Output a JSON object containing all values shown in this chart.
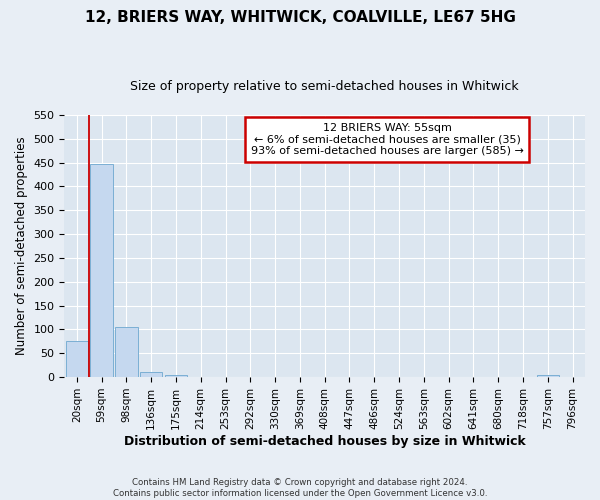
{
  "title": "12, BRIERS WAY, WHITWICK, COALVILLE, LE67 5HG",
  "subtitle": "Size of property relative to semi-detached houses in Whitwick",
  "xlabel": "Distribution of semi-detached houses by size in Whitwick",
  "ylabel": "Number of semi-detached properties",
  "annotation_title": "12 BRIERS WAY: 55sqm",
  "annotation_line1": "← 6% of semi-detached houses are smaller (35)",
  "annotation_line2": "93% of semi-detached houses are larger (585) →",
  "bar_labels": [
    "20sqm",
    "59sqm",
    "98sqm",
    "136sqm",
    "175sqm",
    "214sqm",
    "253sqm",
    "292sqm",
    "330sqm",
    "369sqm",
    "408sqm",
    "447sqm",
    "486sqm",
    "524sqm",
    "563sqm",
    "602sqm",
    "641sqm",
    "680sqm",
    "718sqm",
    "757sqm",
    "796sqm"
  ],
  "bar_values": [
    75,
    447,
    105,
    10,
    5,
    0,
    0,
    0,
    0,
    0,
    0,
    0,
    0,
    0,
    0,
    0,
    0,
    0,
    0,
    5,
    0
  ],
  "bar_color": "#c5d8ef",
  "bar_edge_color": "#7bafd4",
  "vline_color": "#cc0000",
  "vline_position": 0.5,
  "ylim": [
    0,
    550
  ],
  "yticks": [
    0,
    50,
    100,
    150,
    200,
    250,
    300,
    350,
    400,
    450,
    500,
    550
  ],
  "annotation_box_color": "#ffffff",
  "annotation_box_edge": "#cc0000",
  "footer_line1": "Contains HM Land Registry data © Crown copyright and database right 2024.",
  "footer_line2": "Contains public sector information licensed under the Open Government Licence v3.0.",
  "bg_color": "#e8eef5",
  "plot_bg_color": "#dce6f0",
  "title_fontsize": 11,
  "subtitle_fontsize": 9
}
